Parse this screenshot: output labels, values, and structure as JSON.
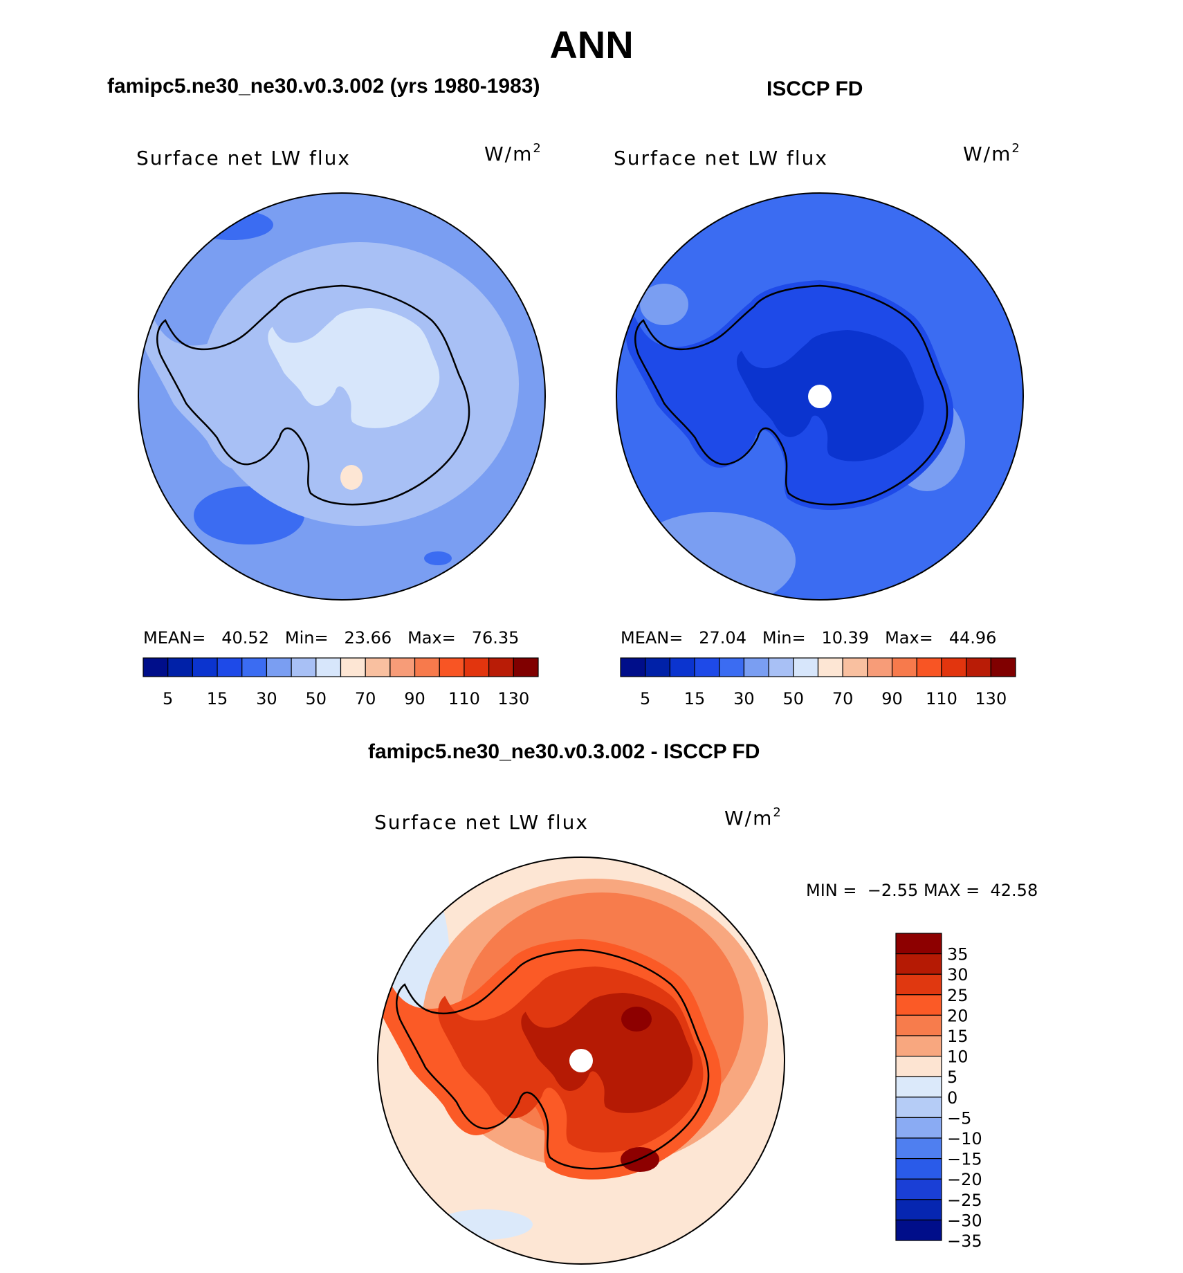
{
  "title": "ANN",
  "panels": [
    {
      "title": "famipc5.ne30_ne30.v0.3.002 (yrs 1980-1983)",
      "variable": "Surface net LW flux",
      "units_base": "W/m",
      "units_exp": "2",
      "stats": {
        "mean_label": "MEAN=",
        "mean": "40.52",
        "min_label": "Min=",
        "min": "23.66",
        "max_label": "Max=",
        "max": "76.35"
      }
    },
    {
      "title": "ISCCP FD",
      "variable": "Surface net LW flux",
      "units_base": "W/m",
      "units_exp": "2",
      "stats": {
        "mean_label": "MEAN=",
        "mean": "27.04",
        "min_label": "Min=",
        "min": "10.39",
        "max_label": "Max=",
        "max": "44.96"
      }
    },
    {
      "title": "famipc5.ne30_ne30.v0.3.002 - ISCCP FD",
      "variable": "Surface net LW flux",
      "units_base": "W/m",
      "units_exp": "2",
      "stats": {
        "min_label": "MIN =",
        "min": "−2.55",
        "max_label": "MAX =",
        "max": "42.58"
      }
    }
  ],
  "colorbar_abs": {
    "colors": [
      "#000e8a",
      "#0021a8",
      "#0b34cf",
      "#1e4ae8",
      "#3b6cf2",
      "#7a9ef2",
      "#a8c0f5",
      "#d7e6fb",
      "#fde6d4",
      "#f9c0a0",
      "#f79c78",
      "#f77a4c",
      "#f85524",
      "#e2350e",
      "#b91c06",
      "#800000"
    ],
    "tick_labels": [
      "5",
      "15",
      "30",
      "50",
      "70",
      "90",
      "110",
      "130"
    ]
  },
  "colorbar_diff": {
    "colors": [
      "#8d0000",
      "#b51a04",
      "#e03810",
      "#fb5a26",
      "#f77c4c",
      "#f8a77f",
      "#fde4d2",
      "#dbe9fa",
      "#b5ccf6",
      "#8aabf3",
      "#4f7ff0",
      "#2a5be9",
      "#1a3fd6",
      "#0626b1",
      "#000e8a"
    ],
    "tick_labels": [
      "35",
      "30",
      "25",
      "20",
      "15",
      "10",
      "5",
      "0",
      "−5",
      "−10",
      "−15",
      "−20",
      "−25",
      "−30",
      "−35"
    ]
  },
  "map_colors": {
    "ocean_model": "#7a9ef2",
    "ocean_model_dark": "#3b6cf2",
    "ice_model": "#a8c0f5",
    "inner_model": "#d7e6fb",
    "warm_model": "#fde6d4",
    "obs_light": "#7a9ef2",
    "obs_mid": "#3b6cf2",
    "obs_dark": "#1e4ae8",
    "obs_darker": "#0b34cf",
    "diff_bg": "#fde6d4",
    "diff_10": "#f8a77f",
    "diff_15": "#f77c4c",
    "diff_20": "#fb5a26",
    "diff_25": "#e03810",
    "diff_30": "#b51a04",
    "diff_35": "#8d0000",
    "diff_neg": "#dbe9fa",
    "coast": "#000000"
  }
}
